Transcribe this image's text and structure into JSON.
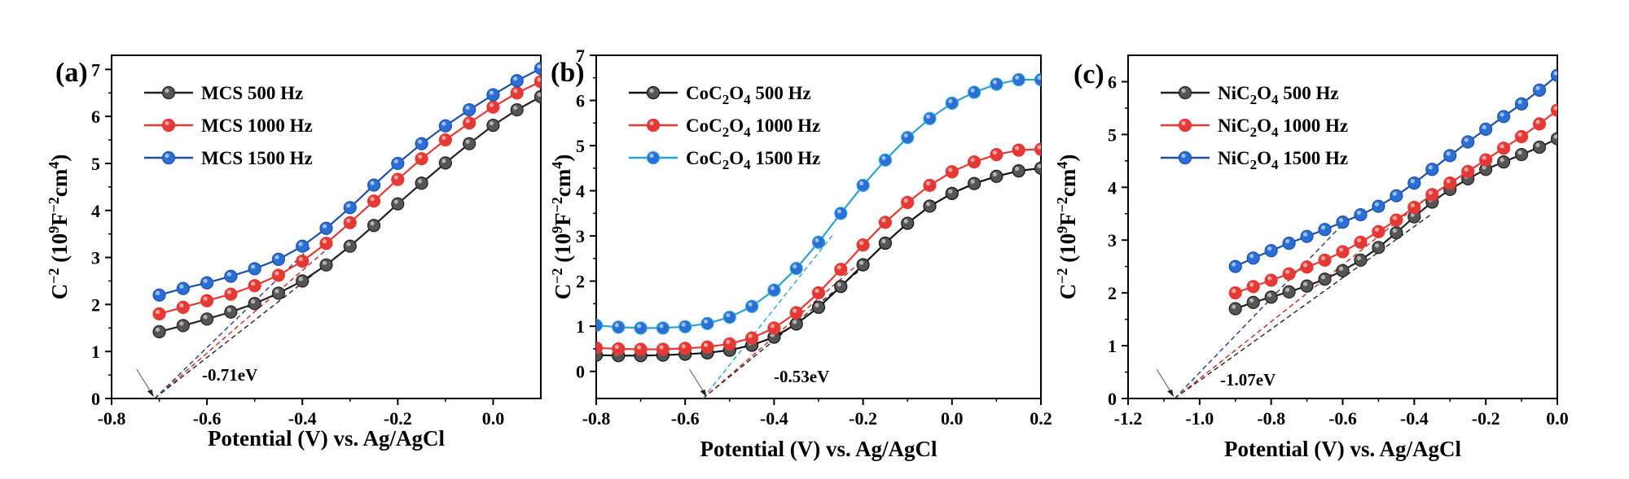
{
  "chart_data": [
    {
      "type": "line",
      "panel_label": "(a)",
      "xlabel": "Potential (V) vs. Ag/AgCl",
      "ylabel_parts": [
        "C",
        "−2",
        " (10",
        "9",
        "F",
        "−2",
        "cm",
        "4",
        ")"
      ],
      "xlim": [
        -0.8,
        0.1
      ],
      "ylim": [
        0,
        7.3
      ],
      "xticks": [
        -0.8,
        -0.6,
        -0.4,
        -0.2,
        0.0
      ],
      "xtick_labels": [
        "-0.8",
        "-0.6",
        "-0.4",
        "-0.2",
        "0.0"
      ],
      "yticks": [
        0,
        1,
        2,
        3,
        4,
        5,
        6,
        7
      ],
      "ytick_labels": [
        "0",
        "1",
        "2",
        "3",
        "4",
        "5",
        "6",
        "7"
      ],
      "legend_position": "top-left",
      "annotation": {
        "text": "-0.71eV",
        "x": -0.71,
        "y": 0
      },
      "fit_lines": [
        {
          "color": "#222222",
          "x": [
            -0.71,
            -0.3
          ],
          "y": [
            0,
            3.25
          ]
        },
        {
          "color": "#c62828",
          "x": [
            -0.71,
            -0.34
          ],
          "y": [
            0,
            3.25
          ]
        },
        {
          "color": "#1a3e8c",
          "x": [
            -0.71,
            -0.38
          ],
          "y": [
            0,
            3.25
          ]
        }
      ],
      "x": [
        -0.7,
        -0.65,
        -0.6,
        -0.55,
        -0.5,
        -0.45,
        -0.4,
        -0.35,
        -0.3,
        -0.25,
        -0.2,
        -0.15,
        -0.1,
        -0.05,
        0.0,
        0.05,
        0.1
      ],
      "series": [
        {
          "name_parts": [
            "MCS  500 Hz"
          ],
          "color": "#555555",
          "line_color": "#222222",
          "values": [
            1.42,
            1.55,
            1.69,
            1.84,
            2.02,
            2.24,
            2.5,
            2.84,
            3.24,
            3.68,
            4.14,
            4.58,
            5.01,
            5.42,
            5.81,
            6.14,
            6.42
          ]
        },
        {
          "name_parts": [
            "MCS  1000 Hz"
          ],
          "color": "#e53935",
          "line_color": "#e53935",
          "values": [
            1.8,
            1.94,
            2.08,
            2.22,
            2.4,
            2.62,
            2.92,
            3.3,
            3.74,
            4.2,
            4.66,
            5.1,
            5.5,
            5.86,
            6.2,
            6.5,
            6.74
          ]
        },
        {
          "name_parts": [
            "MCS  1500 Hz"
          ],
          "color": "#2a6fd6",
          "line_color": "#1e4fa8",
          "values": [
            2.2,
            2.34,
            2.46,
            2.6,
            2.76,
            2.96,
            3.24,
            3.62,
            4.06,
            4.54,
            5.0,
            5.42,
            5.8,
            6.14,
            6.46,
            6.76,
            7.02
          ]
        }
      ]
    },
    {
      "type": "line",
      "panel_label": "(b)",
      "xlabel": "Potential (V) vs. Ag/AgCl",
      "ylabel_parts": [
        "C",
        "−2",
        " (10",
        "9",
        "F",
        "−2",
        "cm",
        "4",
        ")"
      ],
      "xlim": [
        -0.8,
        0.2
      ],
      "ylim": [
        -0.6,
        7
      ],
      "xticks": [
        -0.8,
        -0.6,
        -0.4,
        -0.2,
        0.0,
        0.2
      ],
      "xtick_labels": [
        "-0.8",
        "-0.6",
        "-0.4",
        "-0.2",
        "0.0",
        "0.2"
      ],
      "yticks": [
        0,
        1,
        2,
        3,
        4,
        5,
        6,
        7
      ],
      "ytick_labels": [
        "0",
        "1",
        "2",
        "3",
        "4",
        "5",
        "6",
        "7"
      ],
      "legend_position": "top-left",
      "annotation": {
        "text": "-0.53eV",
        "x": -0.55,
        "y": -0.6
      },
      "fit_lines": [
        {
          "color": "#222222",
          "x": [
            -0.56,
            -0.2
          ],
          "y": [
            -0.6,
            2.3
          ]
        },
        {
          "color": "#c62828",
          "x": [
            -0.56,
            -0.22
          ],
          "y": [
            -0.6,
            2.3
          ]
        },
        {
          "color": "#29a3d6",
          "x": [
            -0.56,
            -0.27
          ],
          "y": [
            -0.6,
            3.0
          ]
        }
      ],
      "x": [
        -0.8,
        -0.75,
        -0.7,
        -0.65,
        -0.6,
        -0.55,
        -0.5,
        -0.45,
        -0.4,
        -0.35,
        -0.3,
        -0.25,
        -0.2,
        -0.15,
        -0.1,
        -0.05,
        0.0,
        0.05,
        0.1,
        0.15,
        0.2
      ],
      "series": [
        {
          "name_parts": [
            "CoC",
            "2",
            "O",
            "4",
            " 500 Hz"
          ],
          "color": "#555555",
          "line_color": "#111111",
          "values": [
            0.36,
            0.35,
            0.35,
            0.36,
            0.38,
            0.41,
            0.47,
            0.58,
            0.76,
            1.05,
            1.42,
            1.88,
            2.36,
            2.84,
            3.28,
            3.66,
            3.94,
            4.16,
            4.32,
            4.44,
            4.5
          ]
        },
        {
          "name_parts": [
            "CoC",
            "2",
            "O",
            "4",
            " 1000 Hz"
          ],
          "color": "#e53935",
          "line_color": "#e53935",
          "values": [
            0.52,
            0.5,
            0.49,
            0.49,
            0.51,
            0.54,
            0.61,
            0.74,
            0.96,
            1.3,
            1.74,
            2.26,
            2.8,
            3.3,
            3.74,
            4.12,
            4.42,
            4.64,
            4.8,
            4.9,
            4.92
          ]
        },
        {
          "name_parts": [
            "CoC",
            "2",
            "O",
            "4",
            " 1500 Hz"
          ],
          "color": "#2a6fd6",
          "line_color": "#29a3d6",
          "values": [
            1.02,
            0.98,
            0.96,
            0.96,
            0.99,
            1.06,
            1.2,
            1.44,
            1.8,
            2.28,
            2.86,
            3.5,
            4.12,
            4.68,
            5.18,
            5.6,
            5.94,
            6.18,
            6.36,
            6.46,
            6.46
          ]
        }
      ]
    },
    {
      "type": "line",
      "panel_label": "(c)",
      "xlabel": "Potential (V) vs. Ag/AgCl",
      "ylabel_parts": [
        "C",
        "−2",
        " (10",
        "9",
        "F",
        "−2",
        "cm",
        "4",
        ")"
      ],
      "xlim": [
        -1.2,
        0.0
      ],
      "ylim": [
        0,
        6.5
      ],
      "xticks": [
        -1.2,
        -1.0,
        -0.8,
        -0.6,
        -0.4,
        -0.2,
        0.0
      ],
      "xtick_labels": [
        "-1.2",
        "-1.0",
        "-0.8",
        "-0.6",
        "-0.4",
        "-0.2",
        "0.0"
      ],
      "yticks": [
        0,
        1,
        2,
        3,
        4,
        5,
        6
      ],
      "ytick_labels": [
        "0",
        "1",
        "2",
        "3",
        "4",
        "5",
        "6"
      ],
      "legend_position": "top-left",
      "annotation": {
        "text": "-1.07eV",
        "x": -1.07,
        "y": 0
      },
      "fit_lines": [
        {
          "color": "#222222",
          "x": [
            -1.07,
            -0.35
          ],
          "y": [
            0,
            3.5
          ]
        },
        {
          "color": "#c62828",
          "x": [
            -1.07,
            -0.42
          ],
          "y": [
            0,
            3.5
          ]
        },
        {
          "color": "#1a3e8c",
          "x": [
            -1.07,
            -0.6
          ],
          "y": [
            0,
            3.3
          ]
        }
      ],
      "x": [
        -0.9,
        -0.85,
        -0.8,
        -0.75,
        -0.7,
        -0.65,
        -0.6,
        -0.55,
        -0.5,
        -0.45,
        -0.4,
        -0.35,
        -0.3,
        -0.25,
        -0.2,
        -0.15,
        -0.1,
        -0.05,
        0.0
      ],
      "series": [
        {
          "name_parts": [
            "NiC",
            "2",
            "O",
            "4",
            " 500 Hz"
          ],
          "color": "#555555",
          "line_color": "#222222",
          "values": [
            1.7,
            1.82,
            1.92,
            2.02,
            2.13,
            2.26,
            2.42,
            2.62,
            2.86,
            3.14,
            3.44,
            3.72,
            3.96,
            4.16,
            4.34,
            4.48,
            4.62,
            4.76,
            4.92
          ]
        },
        {
          "name_parts": [
            "NiC",
            "2",
            "O",
            "4",
            " 1000 Hz"
          ],
          "color": "#e53935",
          "line_color": "#e53935",
          "values": [
            2.0,
            2.12,
            2.24,
            2.36,
            2.49,
            2.62,
            2.78,
            2.96,
            3.16,
            3.38,
            3.62,
            3.86,
            4.08,
            4.3,
            4.52,
            4.74,
            4.96,
            5.2,
            5.46
          ]
        },
        {
          "name_parts": [
            "NiC",
            "2",
            "O",
            "4",
            " 1500 Hz"
          ],
          "color": "#2a6fd6",
          "line_color": "#1e4fa8",
          "values": [
            2.5,
            2.66,
            2.8,
            2.94,
            3.07,
            3.2,
            3.34,
            3.48,
            3.64,
            3.84,
            4.08,
            4.34,
            4.6,
            4.86,
            5.1,
            5.34,
            5.58,
            5.84,
            6.12
          ]
        }
      ]
    }
  ]
}
